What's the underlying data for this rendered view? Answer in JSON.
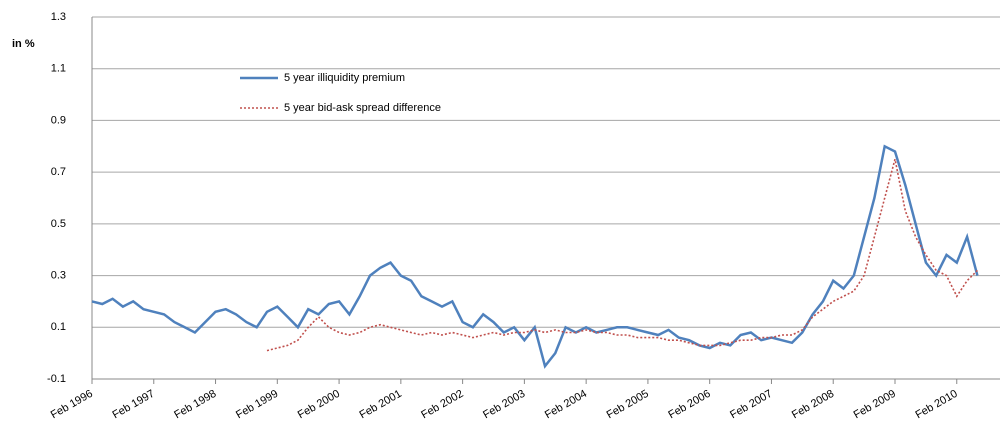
{
  "chart_data": {
    "type": "line",
    "y_label": "in %",
    "x": [
      "Feb 1996",
      "Apr 1996",
      "Jun 1996",
      "Aug 1996",
      "Oct 1996",
      "Dec 1996",
      "Feb 1997",
      "Apr 1997",
      "Jun 1997",
      "Aug 1997",
      "Oct 1997",
      "Dec 1997",
      "Feb 1998",
      "Apr 1998",
      "Jun 1998",
      "Aug 1998",
      "Oct 1998",
      "Dec 1998",
      "Feb 1999",
      "Apr 1999",
      "Jun 1999",
      "Aug 1999",
      "Oct 1999",
      "Dec 1999",
      "Feb 2000",
      "Apr 2000",
      "Jun 2000",
      "Aug 2000",
      "Oct 2000",
      "Dec 2000",
      "Feb 2001",
      "Apr 2001",
      "Jun 2001",
      "Aug 2001",
      "Oct 2001",
      "Dec 2001",
      "Feb 2002",
      "Apr 2002",
      "Jun 2002",
      "Aug 2002",
      "Oct 2002",
      "Dec 2002",
      "Feb 2003",
      "Apr 2003",
      "Jun 2003",
      "Aug 2003",
      "Oct 2003",
      "Dec 2003",
      "Feb 2004",
      "Apr 2004",
      "Jun 2004",
      "Aug 2004",
      "Oct 2004",
      "Dec 2004",
      "Feb 2005",
      "Apr 2005",
      "Jun 2005",
      "Aug 2005",
      "Oct 2005",
      "Dec 2005",
      "Feb 2006",
      "Apr 2006",
      "Jun 2006",
      "Aug 2006",
      "Oct 2006",
      "Dec 2006",
      "Feb 2007",
      "Apr 2007",
      "Jun 2007",
      "Aug 2007",
      "Oct 2007",
      "Dec 2007",
      "Feb 2008",
      "Apr 2008",
      "Jun 2008",
      "Aug 2008",
      "Oct 2008",
      "Dec 2008",
      "Feb 2009",
      "Apr 2009",
      "Jun 2009",
      "Aug 2009",
      "Oct 2009",
      "Dec 2009",
      "Feb 2010",
      "Apr 2010",
      "Jun 2010"
    ],
    "series": [
      {
        "name": "5 year illiquidity premium",
        "color": "#4f81bd",
        "style": "solid",
        "values": [
          0.2,
          0.19,
          0.21,
          0.18,
          0.2,
          0.17,
          0.16,
          0.15,
          0.12,
          0.1,
          0.08,
          0.12,
          0.16,
          0.17,
          0.15,
          0.12,
          0.1,
          0.16,
          0.18,
          0.14,
          0.1,
          0.17,
          0.15,
          0.19,
          0.2,
          0.15,
          0.22,
          0.3,
          0.33,
          0.35,
          0.3,
          0.28,
          0.22,
          0.2,
          0.18,
          0.2,
          0.12,
          0.1,
          0.15,
          0.12,
          0.08,
          0.1,
          0.05,
          0.1,
          -0.05,
          0.0,
          0.1,
          0.08,
          0.1,
          0.08,
          0.09,
          0.1,
          0.1,
          0.09,
          0.08,
          0.07,
          0.09,
          0.06,
          0.05,
          0.03,
          0.02,
          0.04,
          0.03,
          0.07,
          0.08,
          0.05,
          0.06,
          0.05,
          0.04,
          0.08,
          0.15,
          0.2,
          0.28,
          0.25,
          0.3,
          0.45,
          0.6,
          0.8,
          0.78,
          0.65,
          0.5,
          0.35,
          0.3,
          0.38,
          0.35,
          0.45,
          0.3
        ]
      },
      {
        "name": "5 year bid-ask spread difference",
        "color": "#c0504d",
        "style": "dotted",
        "values": [
          null,
          null,
          null,
          null,
          null,
          null,
          null,
          null,
          null,
          null,
          null,
          null,
          null,
          null,
          null,
          null,
          null,
          0.01,
          0.02,
          0.03,
          0.05,
          0.1,
          0.14,
          0.1,
          0.08,
          0.07,
          0.08,
          0.1,
          0.11,
          0.1,
          0.09,
          0.08,
          0.07,
          0.08,
          0.07,
          0.08,
          0.07,
          0.06,
          0.07,
          0.08,
          0.07,
          0.08,
          0.08,
          0.09,
          0.08,
          0.09,
          0.08,
          0.08,
          0.09,
          0.08,
          0.08,
          0.07,
          0.07,
          0.06,
          0.06,
          0.06,
          0.05,
          0.05,
          0.04,
          0.03,
          0.03,
          0.03,
          0.04,
          0.05,
          0.05,
          0.06,
          0.06,
          0.07,
          0.07,
          0.09,
          0.14,
          0.17,
          0.2,
          0.22,
          0.24,
          0.3,
          0.45,
          0.6,
          0.75,
          0.55,
          0.45,
          0.38,
          0.32,
          0.3,
          0.22,
          0.28,
          0.32
        ]
      }
    ],
    "ylim": [
      -0.1,
      1.3
    ],
    "yticks": [
      -0.1,
      0.1,
      0.3,
      0.5,
      0.7,
      0.9,
      1.1,
      1.3
    ],
    "grid": true,
    "legend": "upper left"
  }
}
